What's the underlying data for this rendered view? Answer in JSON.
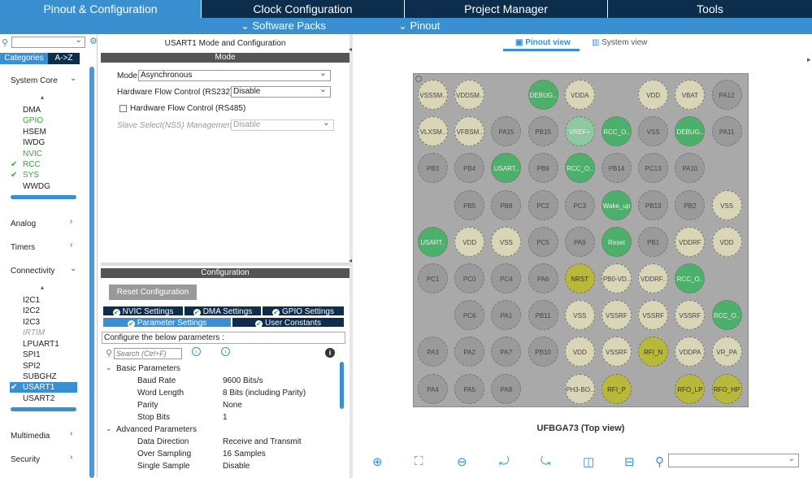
{
  "top_tabs": [
    "Pinout & Configuration",
    "Clock Configuration",
    "Project Manager",
    "Tools"
  ],
  "sub_menu": {
    "software_packs": "Software Packs",
    "pinout": "Pinout"
  },
  "left": {
    "categories_tab": "Categories",
    "az_tab": "A->Z",
    "system_core": {
      "title": "System Core",
      "items": [
        "DMA",
        "GPIO",
        "HSEM",
        "IWDG",
        "NVIC",
        "RCC",
        "SYS",
        "WWDG"
      ]
    },
    "analog": "Analog",
    "timers": "Timers",
    "connectivity": {
      "title": "Connectivity",
      "items": [
        "I2C1",
        "I2C2",
        "I2C3",
        "IRTIM",
        "LPUART1",
        "SPI1",
        "SPI2",
        "SUBGHZ",
        "USART1",
        "USART2"
      ]
    },
    "multimedia": "Multimedia",
    "security": "Security"
  },
  "mode": {
    "title": "USART1 Mode and Configuration",
    "header": "Mode",
    "mode_label": "Mode",
    "mode_value": "Asynchronous",
    "hfc232_label": "Hardware Flow Control (RS232)",
    "hfc232_value": "Disable",
    "hfc485_label": "Hardware Flow Control (RS485)",
    "nss_label": "Slave Select(NSS) Management",
    "nss_value": "Disable"
  },
  "config": {
    "header": "Configuration",
    "reset_button": "Reset Configuration",
    "tabs": [
      "NVIC Settings",
      "DMA Settings",
      "GPIO Settings",
      "Parameter Settings",
      "User Constants"
    ],
    "prompt": "Configure the below parameters :",
    "search_placeholder": "Search (Ctrl+F)",
    "basic_title": "Basic Parameters",
    "basic": [
      {
        "name": "Baud Rate",
        "value": "9600 Bits/s"
      },
      {
        "name": "Word Length",
        "value": "8 Bits (including Parity)"
      },
      {
        "name": "Parity",
        "value": "None"
      },
      {
        "name": "Stop Bits",
        "value": "1"
      }
    ],
    "advanced_title": "Advanced Parameters",
    "advanced": [
      {
        "name": "Data Direction",
        "value": "Receive and Transmit"
      },
      {
        "name": "Over Sampling",
        "value": "16 Samples"
      },
      {
        "name": "Single Sample",
        "value": "Disable"
      }
    ]
  },
  "view": {
    "pinout_view": "Pinout view",
    "system_view": "System view",
    "chip_caption": "UFBGA73 (Top view)"
  },
  "pins": [
    [
      "VSSSM..",
      "VDDSM..",
      "",
      "DEBUG..",
      "VDDA",
      "",
      "VDD",
      "VBAT",
      "PA12"
    ],
    [
      "VLXSM..",
      "VFBSM..",
      "PA15",
      "PB15",
      "VREF+",
      "RCC_O..",
      "VSS",
      "DEBUG..",
      "PA11"
    ],
    [
      "PB3",
      "PB4",
      "USART..",
      "PB9",
      "RCC_O..",
      "PB14",
      "PC13",
      "PA10",
      ""
    ],
    [
      "",
      "PB5",
      "PB8",
      "PC2",
      "PC3",
      "Wake_up",
      "PB13",
      "PB2",
      "VSS"
    ],
    [
      "USART..",
      "VDD",
      "VSS",
      "PC5",
      "PA9",
      "Reset",
      "PB1",
      "VDDRF",
      "VDD"
    ],
    [
      "PC1",
      "PC0",
      "PC4",
      "PA6",
      "NRST",
      "PB0-VD..",
      "VDDRF..",
      "RCC_O..",
      ""
    ],
    [
      "",
      "PC6",
      "PA1",
      "PB11",
      "VSS",
      "VSSRF",
      "VSSRF",
      "VSSRF",
      "RCC_O.."
    ],
    [
      "PA3",
      "PA2",
      "PA7",
      "PB10",
      "VDD",
      "VSSRF",
      "RFI_N",
      "VDDPA",
      "VR_PA"
    ],
    [
      "PA4",
      "PA5",
      "PA8",
      "",
      "PH3-BO..",
      "RFI_P",
      "",
      "RFO_LP",
      "RFO_HP"
    ]
  ],
  "pin_colors": [
    [
      "y",
      "y",
      "",
      "gr",
      "y",
      "",
      "y",
      "y",
      "g"
    ],
    [
      "y",
      "y",
      "g",
      "g",
      "lg",
      "gr",
      "g",
      "gr",
      "g"
    ],
    [
      "g",
      "g",
      "gr",
      "g",
      "gr",
      "g",
      "g",
      "g",
      ""
    ],
    [
      "",
      "g",
      "g",
      "g",
      "g",
      "gr",
      "g",
      "g",
      "y"
    ],
    [
      "gr",
      "y",
      "y",
      "g",
      "g",
      "gr",
      "g",
      "y",
      "y"
    ],
    [
      "g",
      "g",
      "g",
      "g",
      "ol",
      "y",
      "y",
      "gr",
      ""
    ],
    [
      "",
      "g",
      "g",
      "g",
      "y",
      "y",
      "y",
      "y",
      "gr"
    ],
    [
      "g",
      "g",
      "g",
      "g",
      "y",
      "y",
      "ol",
      "y",
      "y"
    ],
    [
      "g",
      "g",
      "g",
      "",
      "y",
      "ol",
      "",
      "ol",
      "ol"
    ]
  ]
}
